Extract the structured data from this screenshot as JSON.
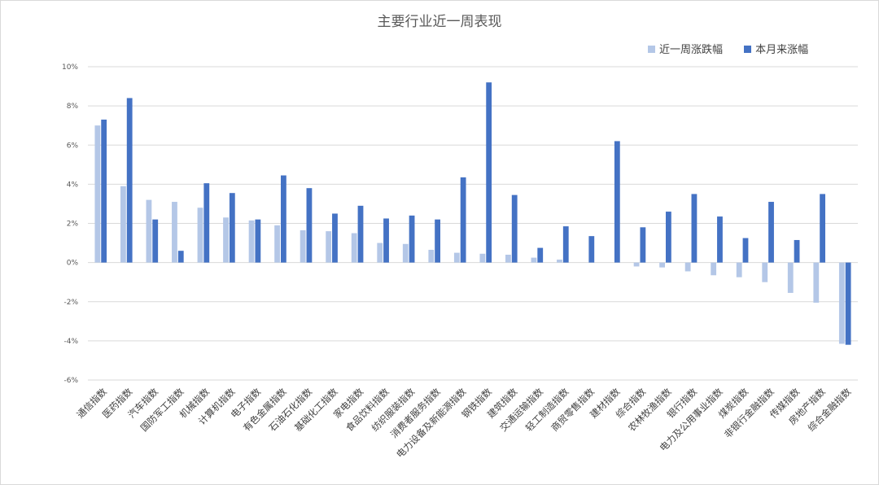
{
  "chart_data": {
    "type": "bar",
    "title": "主要行业近一周表现",
    "xlabel": "",
    "ylabel": "",
    "ylim": [
      -6,
      10
    ],
    "yticks": [
      -6,
      -4,
      -2,
      0,
      2,
      4,
      6,
      8,
      10
    ],
    "ytick_labels": [
      "-6%",
      "-4%",
      "-2%",
      "0%",
      "2%",
      "4%",
      "6%",
      "8%",
      "10%"
    ],
    "grid": true,
    "legend_position": "top-right",
    "categories": [
      "通信指数",
      "医药指数",
      "汽车指数",
      "国防军工指数",
      "机械指数",
      "计算机指数",
      "电子指数",
      "有色金属指数",
      "石油石化指数",
      "基础化工指数",
      "家电指数",
      "食品饮料指数",
      "纺织服装指数",
      "消费者服务指数",
      "电力设备及新能源指数",
      "钢铁指数",
      "建筑指数",
      "交通运输指数",
      "轻工制造指数",
      "商贸零售指数",
      "建材指数",
      "综合指数",
      "农林牧渔指数",
      "银行指数",
      "电力及公用事业指数",
      "煤炭指数",
      "非银行金融指数",
      "传媒指数",
      "房地产指数",
      "综合金融指数"
    ],
    "series": [
      {
        "name": "近一周涨跌幅",
        "color": "#b4c7e7",
        "values": [
          7.0,
          3.9,
          3.2,
          3.1,
          2.8,
          2.3,
          2.15,
          1.9,
          1.65,
          1.6,
          1.5,
          1.0,
          0.95,
          0.65,
          0.5,
          0.45,
          0.4,
          0.25,
          0.15,
          0.0,
          0.0,
          -0.2,
          -0.25,
          -0.45,
          -0.65,
          -0.75,
          -1.0,
          -1.55,
          -2.05,
          -4.15
        ]
      },
      {
        "name": "本月来涨幅",
        "color": "#4472c4",
        "values": [
          7.3,
          8.4,
          2.2,
          0.6,
          4.05,
          3.55,
          2.2,
          4.45,
          3.8,
          2.5,
          2.9,
          2.25,
          2.4,
          2.2,
          4.35,
          9.2,
          3.45,
          0.75,
          1.85,
          1.35,
          6.2,
          1.8,
          2.6,
          3.5,
          2.35,
          1.25,
          3.1,
          1.15,
          3.5,
          -4.2
        ]
      }
    ]
  }
}
